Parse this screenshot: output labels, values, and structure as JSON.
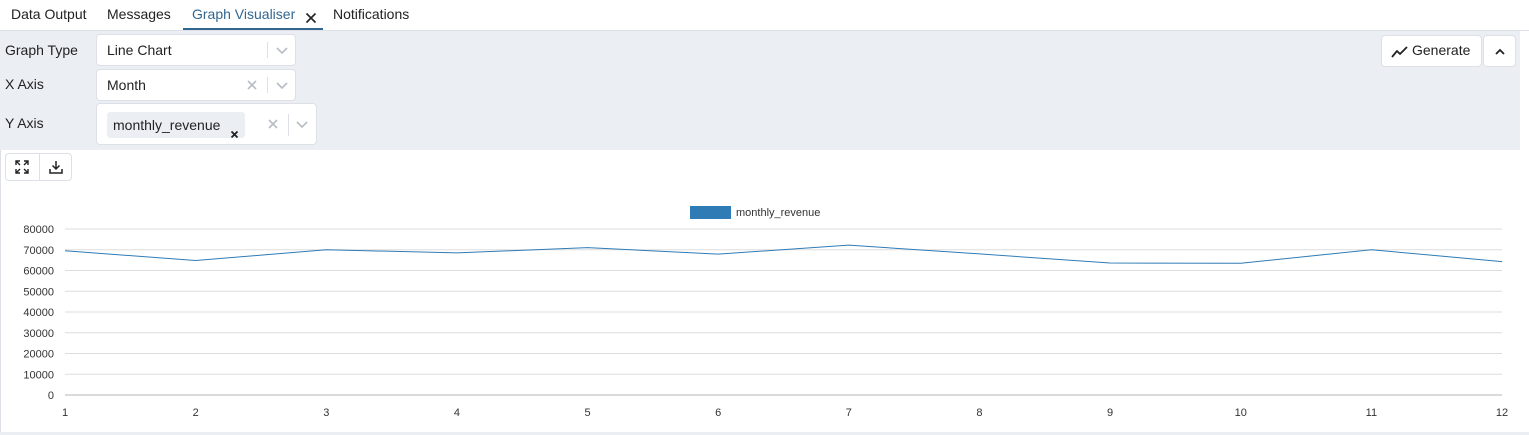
{
  "tabs": [
    {
      "label": "Data Output",
      "active": false
    },
    {
      "label": "Messages",
      "active": false
    },
    {
      "label": "Graph Visualiser",
      "active": true
    },
    {
      "label": "Notifications",
      "active": false
    }
  ],
  "options": {
    "graph_type_label": "Graph Type",
    "graph_type_value": "Line Chart",
    "x_axis_label": "X Axis",
    "x_axis_value": "Month",
    "y_axis_label": "Y Axis",
    "y_axis_chips": [
      "monthly_revenue"
    ],
    "generate_label": "Generate"
  },
  "colors": {
    "accent": "#326690",
    "series": "#2e7bb6",
    "panel_bg": "#ebeef3"
  },
  "icons": {
    "generate": "line-chart-icon",
    "collapse": "chevron-up-icon",
    "fullscreen": "expand-icon",
    "download": "download-icon"
  },
  "chart_data": {
    "type": "line",
    "x": [
      1,
      2,
      3,
      4,
      5,
      6,
      7,
      8,
      9,
      10,
      11,
      12
    ],
    "series": [
      {
        "name": "monthly_revenue",
        "values": [
          69500,
          64800,
          70000,
          68500,
          71000,
          67900,
          72200,
          68000,
          63600,
          63500,
          70000,
          64300
        ]
      }
    ],
    "yticks": [
      0,
      10000,
      20000,
      30000,
      40000,
      50000,
      60000,
      70000,
      80000
    ],
    "ylim": [
      0,
      80000
    ],
    "grid": true,
    "legend": "top-center"
  }
}
